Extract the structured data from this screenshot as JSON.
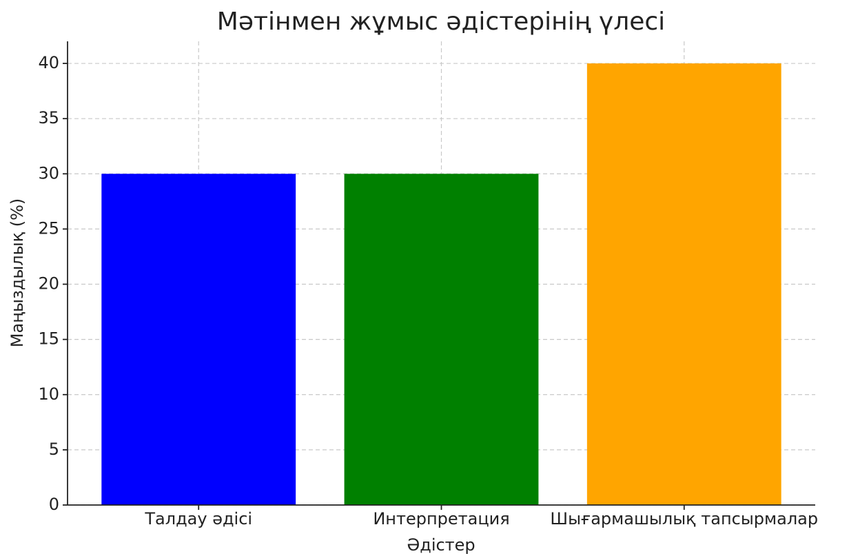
{
  "chart_data": {
    "type": "bar",
    "title": "Мәтінмен жұмыс әдістерінің үлесі",
    "x_label": "Әдістер",
    "y_label": "Маңыздылық (%)",
    "categories": [
      "Талдау әдісі",
      "Интерпретация",
      "Шығармашылық тапсырмалар"
    ],
    "values": [
      30,
      30,
      40
    ],
    "colors": [
      "#0000ff",
      "#008000",
      "#ffa500"
    ],
    "ylim": [
      0,
      42
    ],
    "yticks": [
      0,
      5,
      10,
      15,
      20,
      25,
      30,
      35,
      40
    ],
    "grid": true
  }
}
